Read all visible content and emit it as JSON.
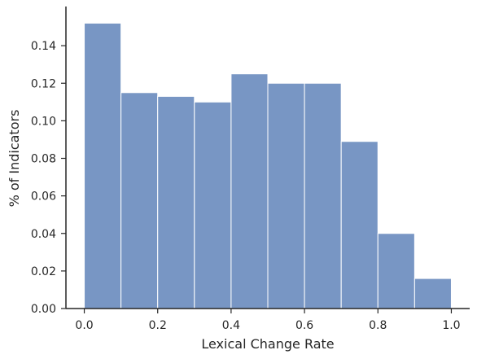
{
  "chart_data": {
    "type": "bar",
    "title": "",
    "xlabel": "Lexical Change Rate",
    "ylabel": "% of Indicators",
    "bins": [
      {
        "start": 0.0,
        "end": 0.1,
        "value": 0.152
      },
      {
        "start": 0.1,
        "end": 0.2,
        "value": 0.115
      },
      {
        "start": 0.2,
        "end": 0.3,
        "value": 0.113
      },
      {
        "start": 0.3,
        "end": 0.4,
        "value": 0.11
      },
      {
        "start": 0.4,
        "end": 0.5,
        "value": 0.125
      },
      {
        "start": 0.5,
        "end": 0.6,
        "value": 0.12
      },
      {
        "start": 0.6,
        "end": 0.7,
        "value": 0.12
      },
      {
        "start": 0.7,
        "end": 0.8,
        "value": 0.089
      },
      {
        "start": 0.8,
        "end": 0.9,
        "value": 0.04
      },
      {
        "start": 0.9,
        "end": 1.0,
        "value": 0.016
      }
    ],
    "xlim": [
      -0.05,
      1.05
    ],
    "ylim": [
      0,
      0.16
    ],
    "x_ticks": [
      "0.0",
      "0.2",
      "0.4",
      "0.6",
      "0.8",
      "1.0"
    ],
    "y_ticks": [
      "0.00",
      "0.02",
      "0.04",
      "0.06",
      "0.08",
      "0.10",
      "0.12",
      "0.14"
    ],
    "grid": false,
    "bar_color": "#7896c4",
    "edge_color": "#ffffff"
  }
}
